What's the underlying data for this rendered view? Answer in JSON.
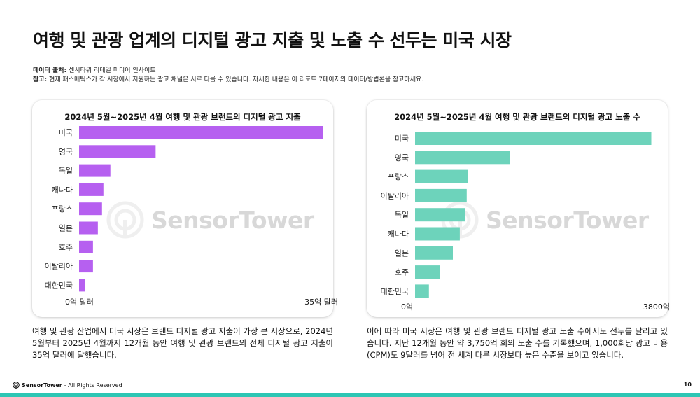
{
  "page": {
    "title": "여행 및 관광 업계의 디지털 광고 지출 및 노출 수 선두는 미국 시장",
    "source_label": "데이터 출처:",
    "source_text": "센서타워 리테일 미디어 인사이트",
    "note_label": "참고:",
    "note_text": "현재 패스매틱스가 각 시장에서 지원하는 광고 채널은 서로 다를 수 있습니다. 자세한 내용은 이 리포트 7페이지의 데이터/방법론을 참고하세요.",
    "left_description": "여행 및 관광 산업에서 미국 시장은 브랜드 디지털 광고 지출이 가장 큰 시장으로, 2024년 5월부터 2025년 4월까지 12개월 동안 여행 및 관광 브랜드의 전체 디지털 광고 지출이 35억 달러에 달했습니다.",
    "right_description": "이에 따라 미국 시장은 여행 및 관광 브랜드 디지털 광고 노출 수에서도 선두를 달리고 있습니다. 지난 12개월 동안 약 3,750억 회의 노출 수를 기록했으며, 1,000회당 광고 비용(CPM)도 9달러를 넘어 전 세계 다른 시장보다 높은 수준을 보이고 있습니다.",
    "watermark": "SensorTower",
    "footer_brand": "SensorTower",
    "footer_rights": "- All Rights Reserved",
    "page_number": "10",
    "colors": {
      "spend_bar": "#b660f0",
      "impression_bar": "#6dd3bb",
      "accent": "#2dc6b4"
    }
  },
  "chart_data": [
    {
      "type": "bar",
      "orientation": "horizontal",
      "title": "2024년 5월~2025년 4월 여행 및 관광 브랜드의 디지털 광고 지출",
      "categories": [
        "미국",
        "영국",
        "독일",
        "캐나다",
        "프랑스",
        "일본",
        "호주",
        "이탈리아",
        "대한민국"
      ],
      "values": [
        3.5,
        1.1,
        0.45,
        0.35,
        0.33,
        0.27,
        0.2,
        0.2,
        0.09
      ],
      "xlim": [
        0,
        3.5
      ],
      "xtick_labels": [
        "0억 달러",
        "35억 달러"
      ],
      "grid": false,
      "color": "#b660f0"
    },
    {
      "type": "bar",
      "orientation": "horizontal",
      "title": "2024년 5월~2025년 4월 여행 및 관광 브랜드의 디지털 광고 노출 수",
      "categories": [
        "미국",
        "영국",
        "프랑스",
        "이탈리아",
        "독일",
        "캐나다",
        "일본",
        "호주",
        "대한민국"
      ],
      "values": [
        3750,
        1500,
        840,
        820,
        790,
        710,
        600,
        400,
        220
      ],
      "xlim": [
        0,
        3800
      ],
      "xtick_labels": [
        "0억",
        "3800억"
      ],
      "grid": false,
      "color": "#6dd3bb"
    }
  ]
}
